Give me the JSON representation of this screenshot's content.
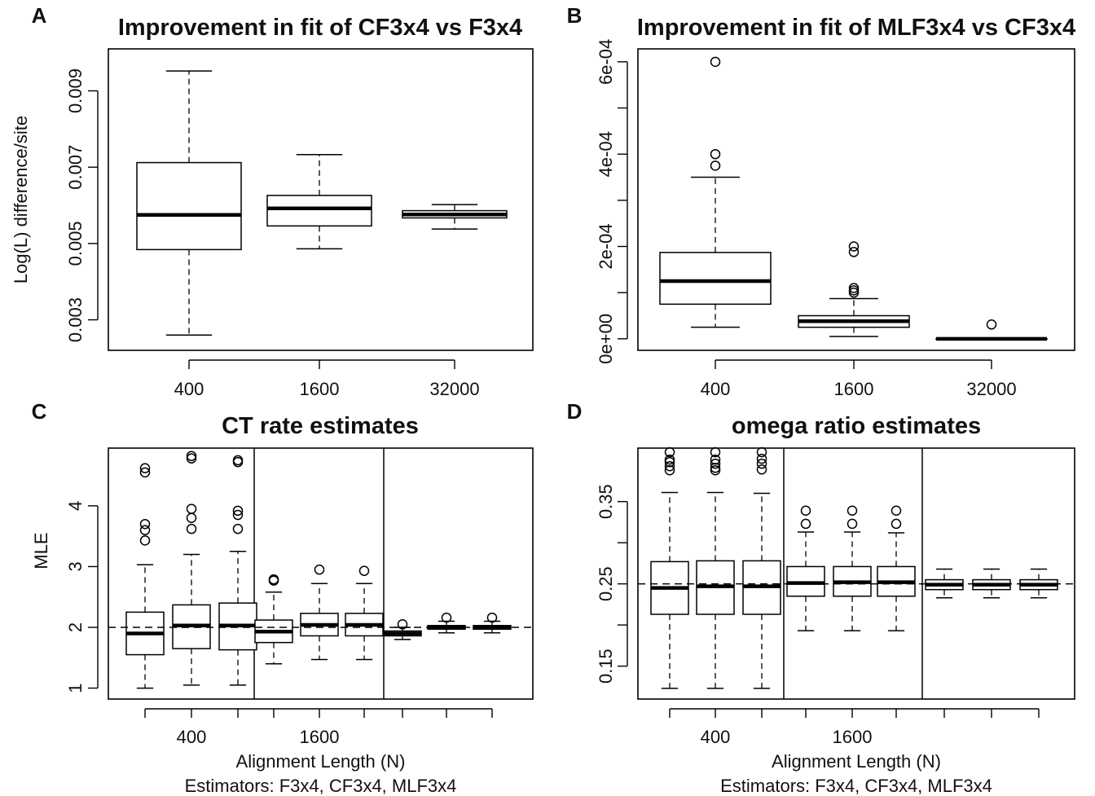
{
  "chart_data": [
    {
      "panel": "A",
      "type": "box",
      "title": "Improvement in fit of CF3x4 vs F3x4",
      "ylabel": "Log(L) difference/site",
      "xlabel": "",
      "categories": [
        "400",
        "1600",
        "32000"
      ],
      "yticks": [
        0.003,
        0.005,
        0.007,
        0.009
      ],
      "ytick_labels": [
        "0.003",
        "0.005",
        "0.007",
        "0.009"
      ],
      "ylim": [
        0.0022,
        0.0101
      ],
      "boxes": [
        {
          "category": "400",
          "min": 0.0026,
          "q1": 0.00484,
          "median": 0.00575,
          "q3": 0.00712,
          "max": 0.00952,
          "outliers": []
        },
        {
          "category": "1600",
          "min": 0.00486,
          "q1": 0.00546,
          "median": 0.00592,
          "q3": 0.00626,
          "max": 0.00733,
          "outliers": []
        },
        {
          "category": "32000",
          "min": 0.00538,
          "q1": 0.00567,
          "median": 0.00576,
          "q3": 0.00586,
          "max": 0.00602,
          "outliers": []
        }
      ]
    },
    {
      "panel": "B",
      "type": "box",
      "title": "Improvement in fit of MLF3x4 vs CF3x4",
      "ylabel": "",
      "xlabel": "",
      "categories": [
        "400",
        "1600",
        "32000"
      ],
      "yticks": [
        0.0,
        0.0002,
        0.0004,
        0.0006
      ],
      "ytick_labels": [
        "0e+00",
        "2e-04",
        "4e-04",
        "6e-04"
      ],
      "minor_yticks": [
        0.0001,
        0.0003,
        0.0005
      ],
      "ylim": [
        -2.5e-05,
        0.000628
      ],
      "boxes": [
        {
          "category": "400",
          "min": 2.5e-05,
          "q1": 7.5e-05,
          "median": 0.000125,
          "q3": 0.000187,
          "max": 0.00035,
          "outliers": [
            0.000375,
            0.0004,
            0.0006
          ]
        },
        {
          "category": "1600",
          "min": 5e-06,
          "q1": 2.5e-05,
          "median": 3.8e-05,
          "q3": 5e-05,
          "max": 8.7e-05,
          "outliers": [
            0.0001,
            0.000105,
            0.00011,
            0.000188,
            0.0002
          ]
        },
        {
          "category": "32000",
          "min": 0.0,
          "q1": 0.0,
          "median": 0.0,
          "q3": 0.0,
          "max": 0.0,
          "outliers": [
            3.1e-05
          ]
        }
      ]
    },
    {
      "panel": "C",
      "type": "box",
      "title": "CT rate estimates",
      "ylabel": "MLE",
      "xlabel": "Alignment Length (N)",
      "subxlabel": "Estimators: F3x4, CF3x4, MLF3x4",
      "group_labels": [
        "400",
        "1600",
        ""
      ],
      "yticks": [
        1,
        2,
        3,
        4
      ],
      "ytick_labels": [
        "1",
        "2",
        "3",
        "4"
      ],
      "ylim": [
        0.82,
        4.95
      ],
      "reference_line": 2,
      "boxes": [
        {
          "group": "400",
          "estimator": "F3x4",
          "min": 1.0,
          "q1": 1.55,
          "median": 1.9,
          "q3": 2.25,
          "max": 3.03,
          "outliers": [
            3.43,
            3.6,
            3.7,
            4.55,
            4.62
          ]
        },
        {
          "group": "400",
          "estimator": "CF3x4",
          "min": 1.05,
          "q1": 1.65,
          "median": 2.03,
          "q3": 2.37,
          "max": 3.2,
          "outliers": [
            3.62,
            3.8,
            3.95,
            4.78,
            4.82
          ]
        },
        {
          "group": "400",
          "estimator": "MLF3x4",
          "min": 1.05,
          "q1": 1.63,
          "median": 2.03,
          "q3": 2.4,
          "max": 3.25,
          "outliers": [
            3.62,
            3.85,
            3.92,
            4.72,
            4.75
          ]
        },
        {
          "group": "1600",
          "estimator": "F3x4",
          "min": 1.4,
          "q1": 1.75,
          "median": 1.93,
          "q3": 2.12,
          "max": 2.58,
          "outliers": [
            2.77,
            2.79
          ]
        },
        {
          "group": "1600",
          "estimator": "CF3x4",
          "min": 1.47,
          "q1": 1.86,
          "median": 2.04,
          "q3": 2.23,
          "max": 2.72,
          "outliers": [
            2.95
          ]
        },
        {
          "group": "1600",
          "estimator": "MLF3x4",
          "min": 1.47,
          "q1": 1.86,
          "median": 2.04,
          "q3": 2.23,
          "max": 2.72,
          "outliers": [
            2.93
          ]
        },
        {
          "group": "",
          "estimator": "F3x4",
          "min": 1.8,
          "q1": 1.86,
          "median": 1.9,
          "q3": 1.94,
          "max": 2.0,
          "outliers": [
            2.05
          ]
        },
        {
          "group": "",
          "estimator": "CF3x4",
          "min": 1.91,
          "q1": 1.97,
          "median": 2.0,
          "q3": 2.03,
          "max": 2.1,
          "outliers": [
            2.16
          ]
        },
        {
          "group": "",
          "estimator": "MLF3x4",
          "min": 1.91,
          "q1": 1.97,
          "median": 2.0,
          "q3": 2.03,
          "max": 2.1,
          "outliers": [
            2.16
          ]
        }
      ]
    },
    {
      "panel": "D",
      "type": "box",
      "title": "omega ratio estimates",
      "ylabel": "",
      "xlabel": "Alignment Length (N)",
      "subxlabel": "Estimators: F3x4, CF3x4, MLF3x4",
      "group_labels": [
        "400",
        "1600",
        ""
      ],
      "yticks": [
        0.15,
        0.25,
        0.35
      ],
      "ytick_labels": [
        "0.15",
        "0.25",
        "0.35"
      ],
      "minor_yticks": [
        0.2,
        0.3
      ],
      "ylim": [
        0.11,
        0.415
      ],
      "reference_line": 0.25,
      "boxes": [
        {
          "group": "400",
          "estimator": "F3x4",
          "min": 0.123,
          "q1": 0.213,
          "median": 0.245,
          "q3": 0.277,
          "max": 0.361,
          "outliers": [
            0.388,
            0.393,
            0.398,
            0.401,
            0.41
          ]
        },
        {
          "group": "400",
          "estimator": "CF3x4",
          "min": 0.123,
          "q1": 0.213,
          "median": 0.247,
          "q3": 0.278,
          "max": 0.361,
          "outliers": [
            0.388,
            0.391,
            0.396,
            0.401,
            0.41
          ]
        },
        {
          "group": "400",
          "estimator": "MLF3x4",
          "min": 0.123,
          "q1": 0.213,
          "median": 0.247,
          "q3": 0.278,
          "max": 0.36,
          "outliers": [
            0.389,
            0.396,
            0.402,
            0.41
          ]
        },
        {
          "group": "1600",
          "estimator": "F3x4",
          "min": 0.193,
          "q1": 0.235,
          "median": 0.251,
          "q3": 0.271,
          "max": 0.313,
          "outliers": [
            0.323,
            0.339
          ]
        },
        {
          "group": "1600",
          "estimator": "CF3x4",
          "min": 0.193,
          "q1": 0.235,
          "median": 0.252,
          "q3": 0.271,
          "max": 0.313,
          "outliers": [
            0.323,
            0.339
          ]
        },
        {
          "group": "1600",
          "estimator": "MLF3x4",
          "min": 0.193,
          "q1": 0.235,
          "median": 0.252,
          "q3": 0.271,
          "max": 0.312,
          "outliers": [
            0.323,
            0.339
          ]
        },
        {
          "group": "",
          "estimator": "F3x4",
          "min": 0.233,
          "q1": 0.243,
          "median": 0.249,
          "q3": 0.255,
          "max": 0.268,
          "outliers": []
        },
        {
          "group": "",
          "estimator": "CF3x4",
          "min": 0.233,
          "q1": 0.243,
          "median": 0.249,
          "q3": 0.255,
          "max": 0.268,
          "outliers": []
        },
        {
          "group": "",
          "estimator": "MLF3x4",
          "min": 0.233,
          "q1": 0.243,
          "median": 0.249,
          "q3": 0.255,
          "max": 0.268,
          "outliers": []
        }
      ]
    }
  ]
}
